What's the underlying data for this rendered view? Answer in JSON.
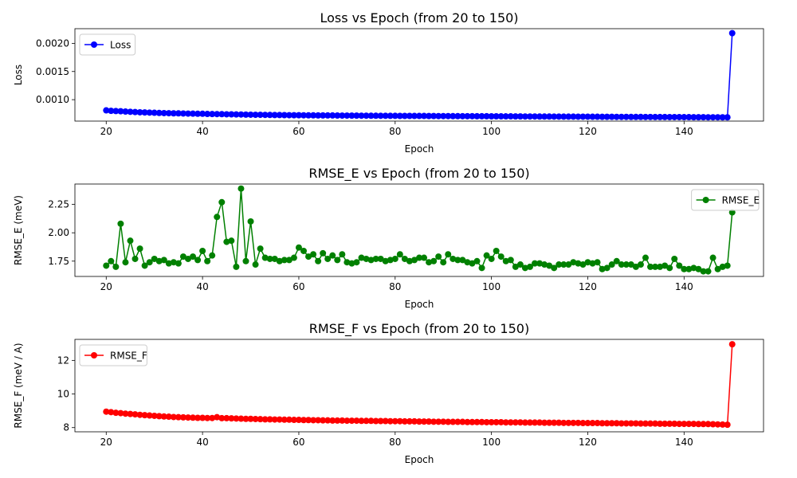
{
  "chart_data": [
    {
      "type": "line",
      "title": "Loss vs Epoch (from 20 to 150)",
      "xlabel": "Epoch",
      "ylabel": "Loss",
      "xlim": [
        13.5,
        156.5
      ],
      "ylim": [
        0.00062,
        0.00226
      ],
      "xticks": [
        20,
        40,
        60,
        80,
        100,
        120,
        140
      ],
      "xtick_labels": [
        "20",
        "40",
        "60",
        "80",
        "100",
        "120",
        "140"
      ],
      "yticks": [
        0.001,
        0.0015,
        0.002
      ],
      "ytick_labels": [
        "0.0010",
        "0.0015",
        "0.0020"
      ],
      "legend_loc": "upper-left",
      "grid": false,
      "x_start": 20,
      "series": [
        {
          "name": "Loss",
          "color": "#0000ff",
          "values": [
            0.00081,
            0.000802,
            0.000798,
            0.000795,
            0.000789,
            0.000785,
            0.00078,
            0.000776,
            0.000774,
            0.000771,
            0.000768,
            0.000764,
            0.000762,
            0.00076,
            0.000758,
            0.000757,
            0.000755,
            0.000753,
            0.000752,
            0.00075,
            0.00075,
            0.000747,
            0.000745,
            0.000744,
            0.000743,
            0.000741,
            0.00074,
            0.000738,
            0.000737,
            0.000735,
            0.000734,
            0.000732,
            0.000732,
            0.00073,
            0.000729,
            0.000728,
            0.000727,
            0.000726,
            0.000725,
            0.000724,
            0.000724,
            0.000723,
            0.000722,
            0.000722,
            0.000721,
            0.000721,
            0.00072,
            0.00072,
            0.000719,
            0.000718,
            0.000718,
            0.000717,
            0.000717,
            0.000716,
            0.000716,
            0.000715,
            0.000715,
            0.000714,
            0.000714,
            0.000713,
            0.000713,
            0.000712,
            0.000712,
            0.000712,
            0.000711,
            0.000711,
            0.000711,
            0.00071,
            0.00071,
            0.000709,
            0.000709,
            0.000709,
            0.000708,
            0.000708,
            0.000707,
            0.000707,
            0.000707,
            0.000706,
            0.000706,
            0.000706,
            0.000705,
            0.000705,
            0.000704,
            0.000704,
            0.000704,
            0.000703,
            0.000703,
            0.000702,
            0.000702,
            0.000702,
            0.000701,
            0.000701,
            0.000701,
            0.0007,
            0.0007,
            0.000699,
            0.000699,
            0.000699,
            0.000698,
            0.000698,
            0.000698,
            0.000697,
            0.000697,
            0.000696,
            0.000696,
            0.000696,
            0.000695,
            0.000695,
            0.000695,
            0.000694,
            0.000694,
            0.000694,
            0.000693,
            0.000693,
            0.000692,
            0.000692,
            0.000692,
            0.000691,
            0.000691,
            0.000691,
            0.00069,
            0.00069,
            0.000689,
            0.000689,
            0.000689,
            0.000688,
            0.000688,
            0.000688,
            0.000687,
            0.000687,
            0.0021805
          ]
        }
      ]
    },
    {
      "type": "line",
      "title": "RMSE_E vs Epoch (from 20 to 150)",
      "xlabel": "Epoch",
      "ylabel": "RMSE_E (meV)",
      "xlim": [
        13.5,
        156.5
      ],
      "ylim": [
        1.615,
        2.43
      ],
      "xticks": [
        20,
        40,
        60,
        80,
        100,
        120,
        140
      ],
      "xtick_labels": [
        "20",
        "40",
        "60",
        "80",
        "100",
        "120",
        "140"
      ],
      "yticks": [
        1.75,
        2.0,
        2.25
      ],
      "ytick_labels": [
        "1.75",
        "2.00",
        "2.25"
      ],
      "legend_loc": "upper-right",
      "grid": false,
      "x_start": 20,
      "series": [
        {
          "name": "RMSE_E",
          "color": "#008000",
          "values": [
            1.71,
            1.75,
            1.7,
            2.08,
            1.74,
            1.93,
            1.77,
            1.86,
            1.71,
            1.74,
            1.77,
            1.75,
            1.76,
            1.73,
            1.74,
            1.73,
            1.79,
            1.77,
            1.79,
            1.76,
            1.84,
            1.75,
            1.8,
            2.14,
            2.27,
            1.92,
            1.93,
            1.7,
            2.39,
            1.75,
            2.1,
            1.72,
            1.86,
            1.78,
            1.77,
            1.77,
            1.75,
            1.76,
            1.76,
            1.78,
            1.87,
            1.84,
            1.79,
            1.81,
            1.75,
            1.82,
            1.77,
            1.8,
            1.76,
            1.81,
            1.74,
            1.73,
            1.74,
            1.78,
            1.77,
            1.76,
            1.77,
            1.77,
            1.75,
            1.76,
            1.77,
            1.81,
            1.77,
            1.75,
            1.76,
            1.78,
            1.78,
            1.74,
            1.75,
            1.79,
            1.74,
            1.81,
            1.77,
            1.76,
            1.76,
            1.74,
            1.73,
            1.75,
            1.69,
            1.8,
            1.77,
            1.84,
            1.79,
            1.75,
            1.76,
            1.7,
            1.72,
            1.69,
            1.7,
            1.73,
            1.73,
            1.72,
            1.71,
            1.69,
            1.72,
            1.72,
            1.72,
            1.74,
            1.73,
            1.72,
            1.74,
            1.73,
            1.74,
            1.68,
            1.69,
            1.72,
            1.75,
            1.72,
            1.72,
            1.72,
            1.7,
            1.72,
            1.78,
            1.7,
            1.7,
            1.7,
            1.71,
            1.69,
            1.77,
            1.71,
            1.68,
            1.68,
            1.69,
            1.68,
            1.66,
            1.66,
            1.78,
            1.68,
            1.7,
            1.71,
            2.18
          ]
        }
      ]
    },
    {
      "type": "line",
      "title": "RMSE_F vs Epoch (from 20 to 150)",
      "xlabel": "Epoch",
      "ylabel": "RMSE_F (meV / A)",
      "xlim": [
        13.5,
        156.5
      ],
      "ylim": [
        7.75,
        13.25
      ],
      "xticks": [
        20,
        40,
        60,
        80,
        100,
        120,
        140
      ],
      "xtick_labels": [
        "20",
        "40",
        "60",
        "80",
        "100",
        "120",
        "140"
      ],
      "yticks": [
        8,
        10,
        12
      ],
      "ytick_labels": [
        "8",
        "10",
        "12"
      ],
      "legend_loc": "upper-left",
      "grid": false,
      "x_start": 20,
      "series": [
        {
          "name": "RMSE_F",
          "color": "#ff0000",
          "values": [
            8.95,
            8.92,
            8.88,
            8.86,
            8.83,
            8.81,
            8.79,
            8.76,
            8.74,
            8.72,
            8.7,
            8.68,
            8.66,
            8.65,
            8.63,
            8.62,
            8.61,
            8.6,
            8.59,
            8.58,
            8.58,
            8.57,
            8.57,
            8.62,
            8.56,
            8.56,
            8.55,
            8.54,
            8.53,
            8.52,
            8.52,
            8.51,
            8.5,
            8.49,
            8.49,
            8.48,
            8.48,
            8.47,
            8.47,
            8.46,
            8.46,
            8.45,
            8.45,
            8.44,
            8.44,
            8.43,
            8.43,
            8.42,
            8.42,
            8.42,
            8.41,
            8.41,
            8.41,
            8.4,
            8.4,
            8.4,
            8.39,
            8.39,
            8.39,
            8.38,
            8.38,
            8.38,
            8.37,
            8.37,
            8.37,
            8.36,
            8.36,
            8.36,
            8.35,
            8.35,
            8.35,
            8.34,
            8.34,
            8.34,
            8.34,
            8.33,
            8.33,
            8.33,
            8.33,
            8.32,
            8.32,
            8.32,
            8.32,
            8.31,
            8.31,
            8.31,
            8.31,
            8.3,
            8.3,
            8.3,
            8.3,
            8.29,
            8.29,
            8.29,
            8.29,
            8.28,
            8.28,
            8.28,
            8.28,
            8.27,
            8.27,
            8.27,
            8.27,
            8.26,
            8.26,
            8.26,
            8.26,
            8.25,
            8.25,
            8.25,
            8.25,
            8.24,
            8.24,
            8.24,
            8.24,
            8.23,
            8.23,
            8.23,
            8.23,
            8.22,
            8.22,
            8.22,
            8.22,
            8.21,
            8.21,
            8.21,
            8.2,
            8.19,
            8.18,
            8.17,
            12.96
          ]
        }
      ]
    }
  ]
}
